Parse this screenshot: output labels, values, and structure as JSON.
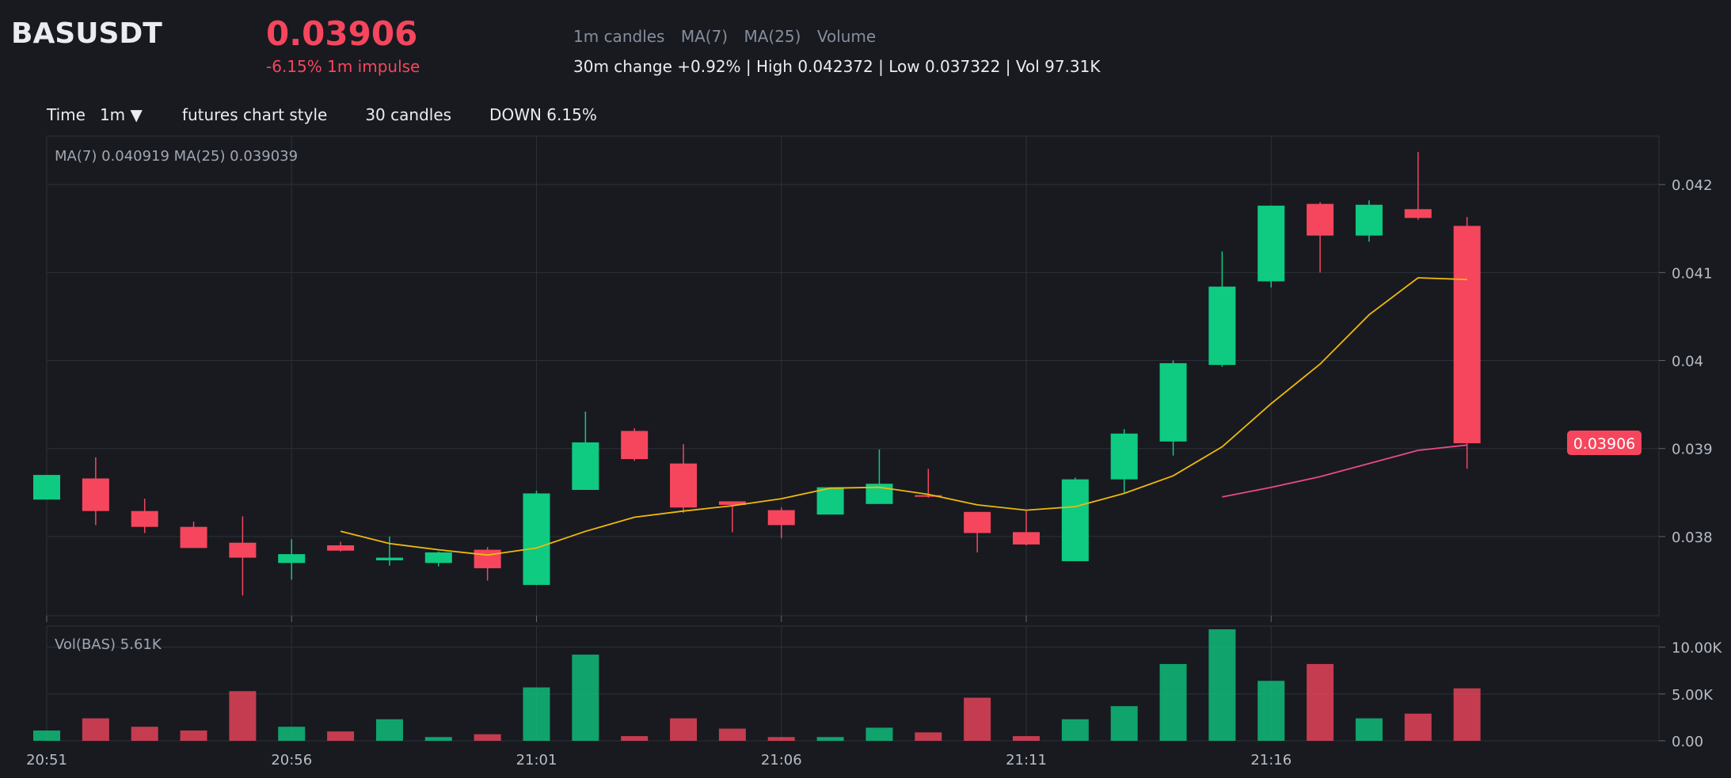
{
  "header": {
    "symbol": "BASUSDT",
    "price": "0.03906",
    "impulse": "-6.15% 1m impulse",
    "labels": [
      "1m candles",
      "MA(7)",
      "MA(25)",
      "Volume"
    ],
    "stats": "30m change +0.92% | High 0.042372 | Low 0.037322 | Vol 97.31K"
  },
  "toolbar": {
    "time_label": "Time",
    "interval": "1m ▼",
    "style": "futures chart style",
    "candles": "30 candles",
    "direction": "DOWN 6.15%"
  },
  "colors": {
    "up": "#0ecb81",
    "down": "#f6465d",
    "ma7": "#f0b90b",
    "ma25": "#e84a8a",
    "bg": "#181a20"
  },
  "chart_data": {
    "type": "candlestick",
    "legend": "MA(7) 0.040919    MA(25) 0.039039",
    "volume_legend": "Vol(BAS) 5.61K",
    "last_price_label": "0.03906",
    "price_ticks": [
      0.038,
      0.039,
      0.04,
      0.041,
      0.042
    ],
    "price_tick_labels": [
      "0.038",
      "0.039",
      "0.04",
      "0.041",
      "0.042"
    ],
    "ylim": [
      0.0371,
      0.04255
    ],
    "volume_ticks": [
      0,
      5000,
      10000
    ],
    "volume_tick_labels": [
      "0.00",
      "5.00K",
      "10.00K"
    ],
    "volume_ylim": [
      0,
      12250
    ],
    "x_ticks": [
      "20:51",
      "20:56",
      "21:01",
      "21:06",
      "21:11",
      "21:16"
    ],
    "x_tick_index": [
      0,
      5,
      10,
      15,
      20,
      25
    ],
    "candles": [
      {
        "o": 0.03842,
        "h": 0.0387,
        "l": 0.03842,
        "c": 0.0387,
        "v": 1100
      },
      {
        "o": 0.03866,
        "h": 0.0389,
        "l": 0.03813,
        "c": 0.03829,
        "v": 2400
      },
      {
        "o": 0.03829,
        "h": 0.03843,
        "l": 0.03804,
        "c": 0.03811,
        "v": 1500
      },
      {
        "o": 0.03811,
        "h": 0.03817,
        "l": 0.03787,
        "c": 0.03787,
        "v": 1100
      },
      {
        "o": 0.03793,
        "h": 0.03823,
        "l": 0.03733,
        "c": 0.03776,
        "v": 5300
      },
      {
        "o": 0.0377,
        "h": 0.03797,
        "l": 0.03751,
        "c": 0.0378,
        "v": 1500
      },
      {
        "o": 0.0379,
        "h": 0.03794,
        "l": 0.03783,
        "c": 0.03784,
        "v": 1000
      },
      {
        "o": 0.03773,
        "h": 0.038,
        "l": 0.03767,
        "c": 0.03776,
        "v": 2300
      },
      {
        "o": 0.0377,
        "h": 0.03783,
        "l": 0.03766,
        "c": 0.03782,
        "v": 400
      },
      {
        "o": 0.03785,
        "h": 0.03788,
        "l": 0.0375,
        "c": 0.03764,
        "v": 700
      },
      {
        "o": 0.03745,
        "h": 0.03852,
        "l": 0.03745,
        "c": 0.03849,
        "v": 5700
      },
      {
        "o": 0.03853,
        "h": 0.03942,
        "l": 0.03853,
        "c": 0.03907,
        "v": 9200
      },
      {
        "o": 0.0392,
        "h": 0.03923,
        "l": 0.03886,
        "c": 0.03888,
        "v": 500
      },
      {
        "o": 0.03883,
        "h": 0.03905,
        "l": 0.03827,
        "c": 0.03833,
        "v": 2400
      },
      {
        "o": 0.0384,
        "h": 0.0384,
        "l": 0.03805,
        "c": 0.03836,
        "v": 1300
      },
      {
        "o": 0.0383,
        "h": 0.03833,
        "l": 0.03798,
        "c": 0.03813,
        "v": 400
      },
      {
        "o": 0.03825,
        "h": 0.03856,
        "l": 0.03825,
        "c": 0.03856,
        "v": 400
      },
      {
        "o": 0.03837,
        "h": 0.03899,
        "l": 0.03837,
        "c": 0.0386,
        "v": 1400
      },
      {
        "o": 0.03847,
        "h": 0.03877,
        "l": 0.03844,
        "c": 0.03846,
        "v": 900
      },
      {
        "o": 0.03828,
        "h": 0.03828,
        "l": 0.03782,
        "c": 0.03804,
        "v": 4600
      },
      {
        "o": 0.03805,
        "h": 0.03829,
        "l": 0.0379,
        "c": 0.03791,
        "v": 500
      },
      {
        "o": 0.03772,
        "h": 0.03867,
        "l": 0.03772,
        "c": 0.03865,
        "v": 2300
      },
      {
        "o": 0.03865,
        "h": 0.03922,
        "l": 0.0385,
        "c": 0.03917,
        "v": 3700
      },
      {
        "o": 0.03908,
        "h": 0.04,
        "l": 0.03892,
        "c": 0.03997,
        "v": 8200
      },
      {
        "o": 0.03995,
        "h": 0.04124,
        "l": 0.03993,
        "c": 0.04084,
        "v": 11900
      },
      {
        "o": 0.0409,
        "h": 0.04176,
        "l": 0.04083,
        "c": 0.04176,
        "v": 6400
      },
      {
        "o": 0.04178,
        "h": 0.0418,
        "l": 0.041,
        "c": 0.04142,
        "v": 8200
      },
      {
        "o": 0.04142,
        "h": 0.04182,
        "l": 0.04135,
        "c": 0.04177,
        "v": 2400
      },
      {
        "o": 0.04172,
        "h": 0.04237,
        "l": 0.0416,
        "c": 0.04162,
        "v": 2900
      },
      {
        "o": 0.04153,
        "h": 0.04163,
        "l": 0.03877,
        "c": 0.03906,
        "v": 5600
      }
    ],
    "ma7": [
      null,
      null,
      null,
      null,
      null,
      null,
      0.03806,
      0.03792,
      0.03785,
      0.03779,
      0.03787,
      0.03806,
      0.03822,
      0.03829,
      0.03835,
      0.03843,
      0.03855,
      0.03856,
      0.03848,
      0.03836,
      0.0383,
      0.03834,
      0.03849,
      0.03869,
      0.03902,
      0.03951,
      0.03996,
      0.04052,
      0.04094,
      0.04092
    ],
    "ma25": [
      null,
      null,
      null,
      null,
      null,
      null,
      null,
      null,
      null,
      null,
      null,
      null,
      null,
      null,
      null,
      null,
      null,
      null,
      null,
      null,
      null,
      null,
      null,
      null,
      0.03845,
      0.03856,
      0.03868,
      0.03883,
      0.03898,
      0.03904
    ]
  }
}
